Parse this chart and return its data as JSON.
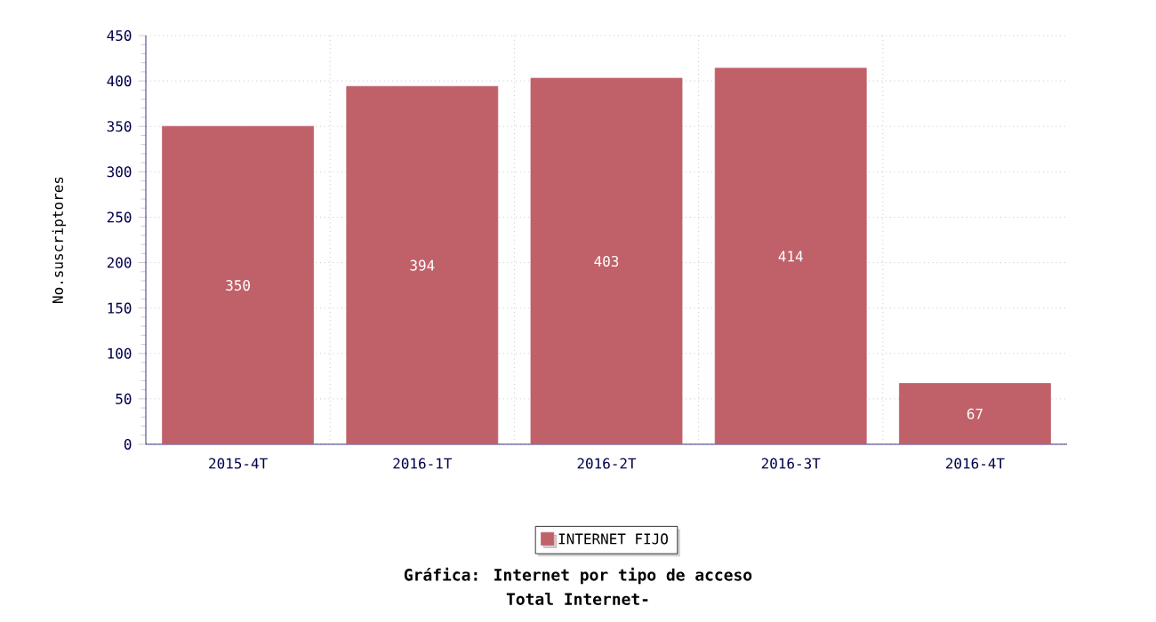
{
  "chart_data": {
    "type": "bar",
    "title": "Gráfica: Internet por tipo de acceso",
    "subtitle": "Total Internet-",
    "ylabel": "No.suscriptores",
    "categories": [
      "2015-4T",
      "2016-1T",
      "2016-2T",
      "2016-3T",
      "2016-4T"
    ],
    "series": [
      {
        "name": "INTERNET FIJO",
        "color": "#c0616a",
        "values": [
          350,
          394,
          403,
          414,
          67
        ]
      }
    ],
    "ylim": [
      0,
      450
    ],
    "yticks": [
      0,
      50,
      100,
      150,
      200,
      250,
      300,
      350,
      400,
      450
    ],
    "grid": true,
    "legend": "bottom",
    "data_labels": true
  }
}
